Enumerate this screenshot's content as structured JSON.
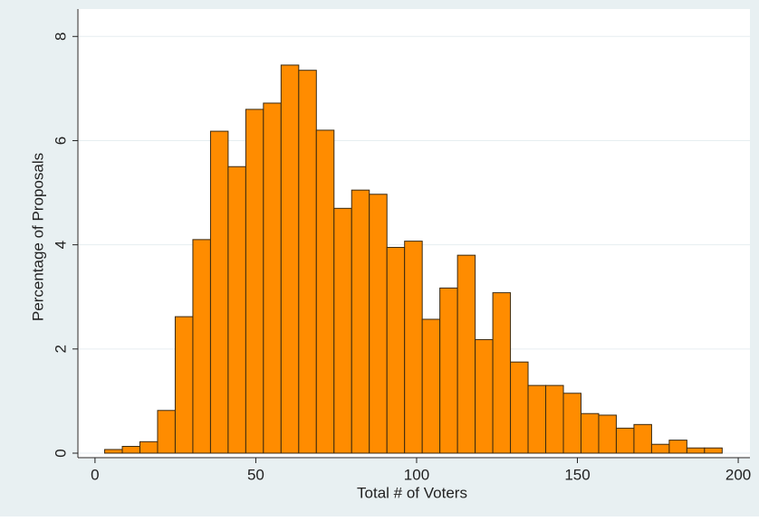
{
  "chart_data": {
    "type": "histogram",
    "x_label": "Total # of Voters",
    "y_label": "Percentage of Proposals",
    "bins": [
      3,
      8.49,
      13.97,
      19.46,
      24.94,
      30.43,
      35.92,
      41.4,
      46.89,
      52.37,
      57.86,
      63.35,
      68.83,
      74.32,
      79.8,
      85.29,
      90.78,
      96.26,
      101.75,
      107.23,
      112.72,
      118.21,
      123.69,
      129.18,
      134.66,
      140.15,
      145.64,
      151.12,
      156.61,
      162.09,
      167.58,
      173.07,
      178.55,
      184.04,
      189.52,
      195.01
    ],
    "values": [
      0.07,
      0.13,
      0.22,
      0.82,
      2.62,
      4.1,
      6.18,
      5.5,
      6.6,
      6.72,
      7.45,
      7.35,
      6.2,
      4.7,
      5.05,
      4.97,
      3.95,
      4.07,
      2.57,
      3.17,
      3.8,
      2.18,
      3.08,
      1.75,
      1.3,
      1.3,
      1.15,
      0.76,
      0.73,
      0.48,
      0.55,
      0.17,
      0.25,
      0.1,
      0.1
    ],
    "color": "#ff8c00",
    "xlim": [
      -5.6,
      202.8
    ],
    "xticks": [
      0,
      50,
      100,
      150,
      200
    ],
    "ylim": [
      0,
      8.3
    ],
    "yticks": [
      0,
      2,
      4,
      6,
      8
    ],
    "grid": true
  }
}
